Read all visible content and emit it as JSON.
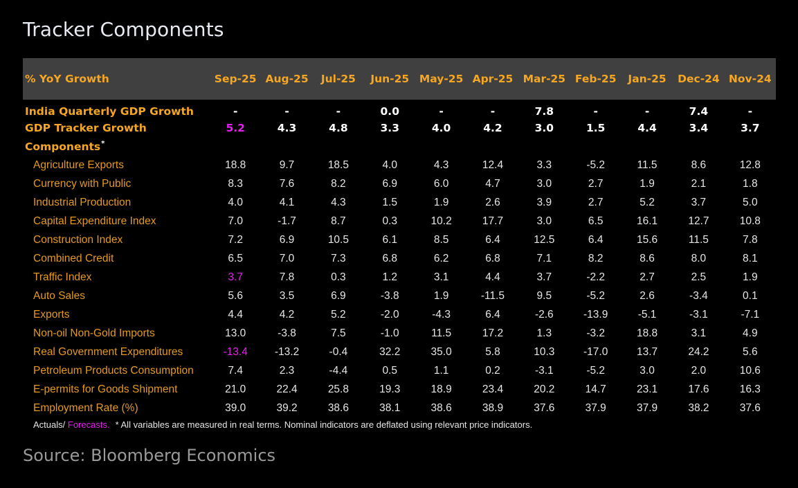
{
  "title": "Tracker Components",
  "header": {
    "label": "% YoY Growth",
    "months": [
      "Sep-25",
      "Aug-25",
      "Jul-25",
      "Jun-25",
      "May-25",
      "Apr-25",
      "Mar-25",
      "Feb-25",
      "Jan-25",
      "Dec-24",
      "Nov-24"
    ]
  },
  "headline_rows": [
    {
      "label": "India Quarterly GDP Growth",
      "values": [
        "-",
        "-",
        "-",
        "0.0",
        "-",
        "-",
        "7.8",
        "-",
        "-",
        "7.4",
        "-"
      ],
      "forecast_cols": []
    },
    {
      "label": "GDP Tracker Growth",
      "values": [
        "5.2",
        "4.3",
        "4.8",
        "3.3",
        "4.0",
        "4.2",
        "3.0",
        "1.5",
        "4.4",
        "3.4",
        "3.7"
      ],
      "forecast_cols": [
        0
      ]
    }
  ],
  "components_section": {
    "label": "Components",
    "marker": "*"
  },
  "components": [
    {
      "label": "Agriculture Exports",
      "values": [
        "18.8",
        "9.7",
        "18.5",
        "4.0",
        "4.3",
        "12.4",
        "3.3",
        "-5.2",
        "11.5",
        "8.6",
        "12.8"
      ],
      "forecast_cols": []
    },
    {
      "label": "Currency with Public",
      "values": [
        "8.3",
        "7.6",
        "8.2",
        "6.9",
        "6.0",
        "4.7",
        "3.0",
        "2.7",
        "1.9",
        "2.1",
        "1.8"
      ],
      "forecast_cols": []
    },
    {
      "label": "Industrial Production",
      "values": [
        "4.0",
        "4.1",
        "4.3",
        "1.5",
        "1.9",
        "2.6",
        "3.9",
        "2.7",
        "5.2",
        "3.7",
        "5.0"
      ],
      "forecast_cols": []
    },
    {
      "label": "Capital Expenditure Index",
      "values": [
        "7.0",
        "-1.7",
        "8.7",
        "0.3",
        "10.2",
        "17.7",
        "3.0",
        "6.5",
        "16.1",
        "12.7",
        "10.8"
      ],
      "forecast_cols": []
    },
    {
      "label": "Construction Index",
      "values": [
        "7.2",
        "6.9",
        "10.5",
        "6.1",
        "8.5",
        "6.4",
        "12.5",
        "6.4",
        "15.6",
        "11.5",
        "7.8"
      ],
      "forecast_cols": []
    },
    {
      "label": "Combined Credit",
      "values": [
        "6.5",
        "7.0",
        "7.3",
        "6.8",
        "6.2",
        "6.8",
        "7.1",
        "8.2",
        "8.6",
        "8.0",
        "8.1"
      ],
      "forecast_cols": []
    },
    {
      "label": "Traffic Index",
      "values": [
        "3.7",
        "7.8",
        "0.3",
        "1.2",
        "3.1",
        "4.4",
        "3.7",
        "-2.2",
        "2.7",
        "2.5",
        "1.9"
      ],
      "forecast_cols": [
        0
      ]
    },
    {
      "label": "Auto Sales",
      "values": [
        "5.6",
        "3.5",
        "6.9",
        "-3.8",
        "1.9",
        "-11.5",
        "9.5",
        "-5.2",
        "2.6",
        "-3.4",
        "0.1"
      ],
      "forecast_cols": []
    },
    {
      "label": "Exports",
      "values": [
        "4.4",
        "4.2",
        "5.2",
        "-2.0",
        "-4.3",
        "6.4",
        "-2.6",
        "-13.9",
        "-5.1",
        "-3.1",
        "-7.1"
      ],
      "forecast_cols": []
    },
    {
      "label": "Non-oil Non-Gold Imports",
      "values": [
        "13.0",
        "-3.8",
        "7.5",
        "-1.0",
        "11.5",
        "17.2",
        "1.3",
        "-3.2",
        "18.8",
        "3.1",
        "4.9"
      ],
      "forecast_cols": []
    },
    {
      "label": "Real Government Expenditures",
      "values": [
        "-13.4",
        "-13.2",
        "-0.4",
        "32.2",
        "35.0",
        "5.8",
        "10.3",
        "-17.0",
        "13.7",
        "24.2",
        "5.6"
      ],
      "forecast_cols": [
        0
      ]
    },
    {
      "label": "Petroleum Products Consumption",
      "values": [
        "7.4",
        "2.3",
        "-4.4",
        "0.5",
        "1.1",
        "0.2",
        "-3.1",
        "-5.2",
        "3.0",
        "2.0",
        "10.6"
      ],
      "forecast_cols": []
    },
    {
      "label": "E-permits for Goods Shipment",
      "values": [
        "21.0",
        "22.4",
        "25.8",
        "19.3",
        "18.9",
        "23.4",
        "20.2",
        "14.7",
        "23.1",
        "17.6",
        "16.3"
      ],
      "forecast_cols": []
    },
    {
      "label": "Employment Rate (%)",
      "values": [
        "39.0",
        "39.2",
        "38.6",
        "38.1",
        "38.6",
        "38.9",
        "37.6",
        "37.9",
        "37.9",
        "38.2",
        "37.6"
      ],
      "forecast_cols": []
    }
  ],
  "footnote": {
    "actuals": "Actuals/",
    "forecasts": "Forecasts.",
    "note": "* All variables are measured in real terms. Nominal indicators are deflated using relevant price indicators."
  },
  "source": "Source: Bloomberg Economics",
  "colors": {
    "background": "#000000",
    "header_band": "#404040",
    "accent_orange": "#f5a623",
    "forecast_magenta": "#e81ef0",
    "value_text": "#e6e6e6"
  }
}
